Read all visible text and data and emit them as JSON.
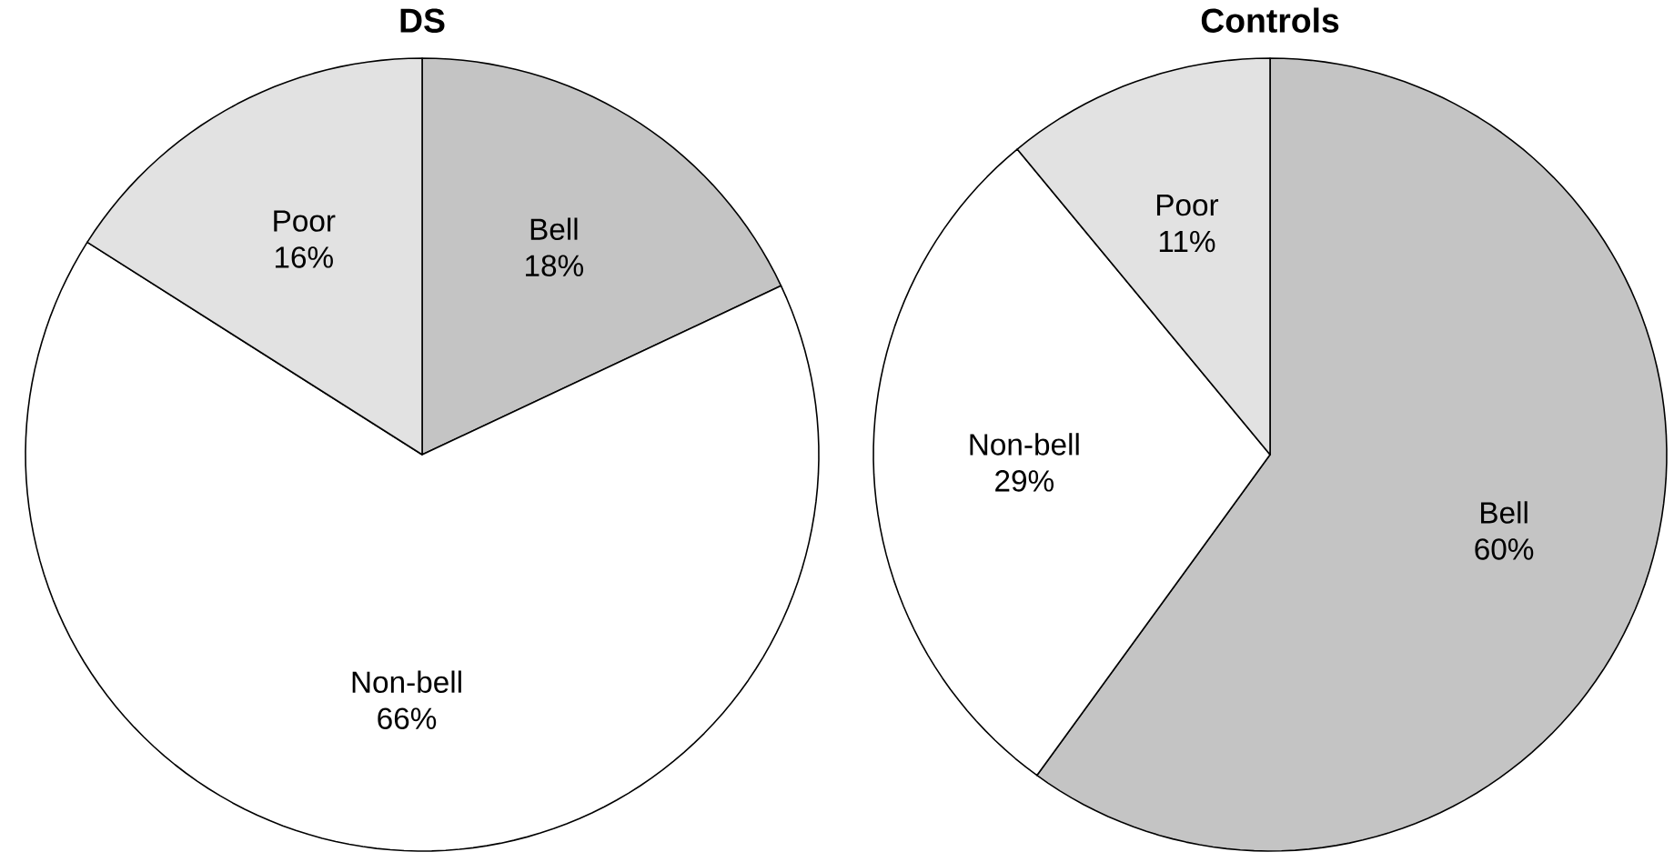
{
  "chart_data": [
    {
      "type": "pie",
      "title": "DS",
      "categories": [
        "Bell",
        "Non-bell",
        "Poor"
      ],
      "values": [
        18,
        66,
        16
      ],
      "value_labels": [
        "18%",
        "66%",
        "16%"
      ],
      "colors": [
        "#c4c4c4",
        "#ffffff",
        "#e2e2e2"
      ]
    },
    {
      "type": "pie",
      "title": "Controls",
      "categories": [
        "Bell",
        "Non-bell",
        "Poor"
      ],
      "values": [
        60,
        29,
        11
      ],
      "value_labels": [
        "60%",
        "29%",
        "11%"
      ],
      "colors": [
        "#c4c4c4",
        "#ffffff",
        "#e2e2e2"
      ]
    }
  ]
}
